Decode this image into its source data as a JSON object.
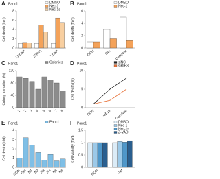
{
  "chart_data": [
    {
      "type": "bar",
      "panel": "A",
      "title": "Panc1",
      "ylabel": "Cell death (fold)",
      "categories": [
        "LNCaP",
        "22Rv1",
        "VCaP"
      ],
      "series": [
        {
          "name": "DMSO",
          "color": "#ffffff",
          "values": [
            1,
            1,
            1
          ]
        },
        {
          "name": "Nec-1",
          "color": "#f4a259",
          "values": [
            1.2,
            5,
            6.5
          ]
        },
        {
          "name": "Nec-1s",
          "color": "#f8cfa0",
          "values": [
            1.1,
            3.5,
            5.5
          ]
        }
      ],
      "ylim": [
        0,
        8
      ],
      "yticks": [
        0,
        2,
        4,
        6,
        8
      ]
    },
    {
      "type": "bar",
      "panel": "B",
      "title": "Panc1",
      "ylabel": "Cell death (fold)",
      "categories": [
        "CON",
        "Gef",
        "Gef+Nec"
      ],
      "series": [
        {
          "name": "DMSO",
          "color": "#ffffff",
          "values": [
            1,
            3,
            5
          ]
        },
        {
          "name": "Nec-1",
          "color": "#f4a259",
          "values": [
            1,
            1.5,
            1.2
          ]
        }
      ],
      "ylim": [
        0,
        6
      ],
      "yticks": [
        0,
        2,
        4,
        6
      ]
    },
    {
      "type": "bar",
      "panel": "C",
      "title": "Panc1",
      "ylabel": "Colony formation (%)",
      "categories": [
        "1",
        "2",
        "3",
        "4",
        "5",
        "6",
        "7",
        "8"
      ],
      "series": [
        {
          "name": "Colonies",
          "color": "#8c8c8c",
          "values": [
            100,
            95,
            85,
            60,
            100,
            90,
            80,
            55
          ]
        }
      ],
      "ylim": [
        0,
        120
      ],
      "yticks": [
        0,
        40,
        80,
        120
      ]
    },
    {
      "type": "line",
      "panel": "D",
      "title": "Panc1",
      "ylabel": "Cell death (%)",
      "categories": [
        "CON",
        "Gef 10",
        "Gef+Nec"
      ],
      "series": [
        {
          "name": "siNC",
          "color": "#222222",
          "values": [
            1,
            5,
            8
          ]
        },
        {
          "name": "siRIP3",
          "color": "#e8733a",
          "values": [
            1,
            2,
            5
          ]
        }
      ],
      "ylim": [
        0,
        10
      ],
      "yticks": [
        0,
        5,
        10
      ]
    },
    {
      "type": "bar",
      "panel": "E",
      "title": "Panc1",
      "ylabel": "Cell death (fold)",
      "categories": [
        "CON",
        "Gef",
        "N1",
        "N2",
        "N3",
        "N4",
        "N5",
        "N6"
      ],
      "series": [
        {
          "name": "Panc1",
          "color": "#7fbfe6",
          "values": [
            1,
            3.2,
            2.4,
            1.6,
            0.8,
            1.4,
            0.7,
            0.9
          ]
        }
      ],
      "ylim": [
        0,
        4
      ],
      "yticks": [
        0,
        1,
        2,
        3,
        4
      ]
    },
    {
      "type": "bar",
      "panel": "F",
      "title": "Panc1",
      "ylabel": "Cell viability (fold)",
      "categories": [
        "CON",
        "Gef"
      ],
      "series": [
        {
          "name": "DMSO",
          "color": "#dcecf7",
          "values": [
            1,
            1
          ]
        },
        {
          "name": "Nec-1",
          "color": "#9cc9e8",
          "values": [
            1,
            1.05
          ]
        },
        {
          "name": "Nec-1s",
          "color": "#4f97c9",
          "values": [
            1,
            1.02
          ]
        },
        {
          "name": "Z-VAD",
          "color": "#2a5f8f",
          "values": [
            1,
            1.08
          ]
        }
      ],
      "ylim": [
        0,
        1.5
      ],
      "yticks": [
        0,
        0.5,
        1,
        1.5
      ]
    }
  ]
}
